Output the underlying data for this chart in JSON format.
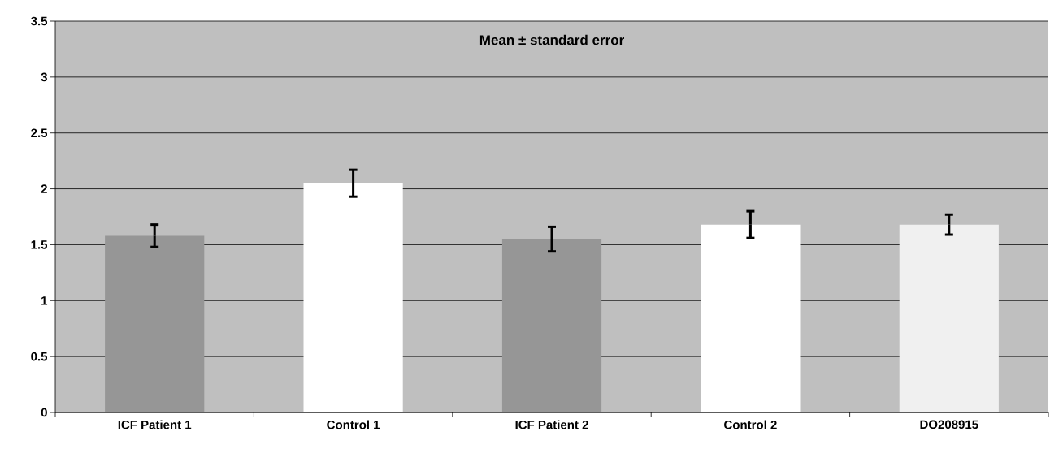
{
  "chart_data": {
    "type": "bar",
    "title": "Mean ± standard error",
    "categories": [
      "ICF Patient 1",
      "Control 1",
      "ICF Patient 2",
      "Control 2",
      "DO208915"
    ],
    "values": [
      1.58,
      2.05,
      1.55,
      1.68,
      1.68
    ],
    "errors": [
      0.1,
      0.12,
      0.11,
      0.12,
      0.09
    ],
    "colors": [
      "#969696",
      "#ffffff",
      "#969696",
      "#ffffff",
      "#f0f0f0"
    ],
    "ylim": [
      0,
      3.5
    ],
    "yticks": [
      0,
      0.5,
      1,
      1.5,
      2,
      2.5,
      3,
      3.5
    ],
    "grid": "y"
  }
}
